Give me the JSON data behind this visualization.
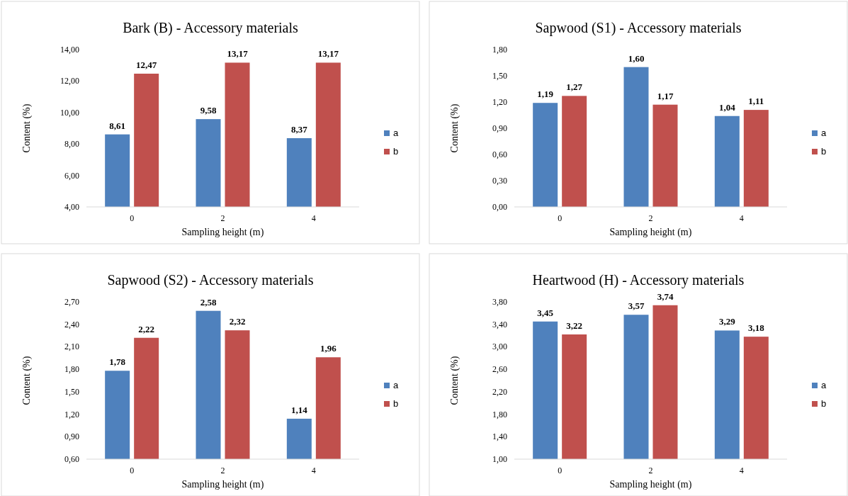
{
  "chart_data": [
    {
      "type": "bar",
      "title": "Bark (B) - Accessory materials",
      "xlabel": "Sampling height (m)",
      "ylabel": "Content (%)",
      "categories": [
        "0",
        "2",
        "4"
      ],
      "legend": "right",
      "ylim": [
        4,
        14
      ],
      "yticks": [
        {
          "value": 4,
          "label": "4,00"
        },
        {
          "value": 6,
          "label": "6,00"
        },
        {
          "value": 8,
          "label": "8,00"
        },
        {
          "value": 10,
          "label": "10,00"
        },
        {
          "value": 12,
          "label": "12,00"
        },
        {
          "value": 14,
          "label": "14,00"
        }
      ],
      "series": [
        {
          "name": "a",
          "color": "#4f81bd",
          "values": [
            8.61,
            9.58,
            8.37
          ],
          "value_labels": [
            "8,61",
            "9,58",
            "8,37"
          ]
        },
        {
          "name": "b",
          "color": "#c0504d",
          "values": [
            12.47,
            13.17,
            13.17
          ],
          "value_labels": [
            "12,47",
            "13,17",
            "13,17"
          ]
        }
      ]
    },
    {
      "type": "bar",
      "title": "Sapwood (S1) - Accessory materials",
      "xlabel": "Sampling height (m)",
      "ylabel": "Content (%)",
      "categories": [
        "0",
        "2",
        "4"
      ],
      "legend": "right",
      "ylim": [
        0,
        1.8
      ],
      "yticks": [
        {
          "value": 0,
          "label": "0,00"
        },
        {
          "value": 0.3,
          "label": "0,30"
        },
        {
          "value": 0.6,
          "label": "0,60"
        },
        {
          "value": 0.9,
          "label": "0,90"
        },
        {
          "value": 1.2,
          "label": "1,20"
        },
        {
          "value": 1.5,
          "label": "1,50"
        },
        {
          "value": 1.8,
          "label": "1,80"
        }
      ],
      "series": [
        {
          "name": "a",
          "color": "#4f81bd",
          "values": [
            1.19,
            1.6,
            1.04
          ],
          "value_labels": [
            "1,19",
            "1,60",
            "1,04"
          ]
        },
        {
          "name": "b",
          "color": "#c0504d",
          "values": [
            1.27,
            1.17,
            1.11
          ],
          "value_labels": [
            "1,27",
            "1,17",
            "1,11"
          ]
        }
      ]
    },
    {
      "type": "bar",
      "title": "Sapwood (S2) - Accessory materials",
      "xlabel": "Sampling height (m)",
      "ylabel": "Content (%)",
      "categories": [
        "0",
        "2",
        "4"
      ],
      "legend": "right",
      "ylim": [
        0.6,
        2.7
      ],
      "yticks": [
        {
          "value": 0.6,
          "label": "0,60"
        },
        {
          "value": 0.9,
          "label": "0,90"
        },
        {
          "value": 1.2,
          "label": "1,20"
        },
        {
          "value": 1.5,
          "label": "1,50"
        },
        {
          "value": 1.8,
          "label": "1,80"
        },
        {
          "value": 2.1,
          "label": "2,10"
        },
        {
          "value": 2.4,
          "label": "2,40"
        },
        {
          "value": 2.7,
          "label": "2,70"
        }
      ],
      "series": [
        {
          "name": "a",
          "color": "#4f81bd",
          "values": [
            1.78,
            2.58,
            1.14
          ],
          "value_labels": [
            "1,78",
            "2,58",
            "1,14"
          ]
        },
        {
          "name": "b",
          "color": "#c0504d",
          "values": [
            2.22,
            2.32,
            1.96
          ],
          "value_labels": [
            "2,22",
            "2,32",
            "1,96"
          ]
        }
      ]
    },
    {
      "type": "bar",
      "title": "Heartwood (H) - Accessory materials",
      "xlabel": "Sampling height (m)",
      "ylabel": "Content (%)",
      "categories": [
        "0",
        "2",
        "4"
      ],
      "legend": "right",
      "ylim": [
        1,
        3.8
      ],
      "yticks": [
        {
          "value": 1,
          "label": "1,00"
        },
        {
          "value": 1.4,
          "label": "1,40"
        },
        {
          "value": 1.8,
          "label": "1,80"
        },
        {
          "value": 2.2,
          "label": "2,20"
        },
        {
          "value": 2.6,
          "label": "2,60"
        },
        {
          "value": 3,
          "label": "3,00"
        },
        {
          "value": 3.4,
          "label": "3,40"
        },
        {
          "value": 3.8,
          "label": "3,80"
        }
      ],
      "series": [
        {
          "name": "a",
          "color": "#4f81bd",
          "values": [
            3.45,
            3.57,
            3.29
          ],
          "value_labels": [
            "3,45",
            "3,57",
            "3,29"
          ]
        },
        {
          "name": "b",
          "color": "#c0504d",
          "values": [
            3.22,
            3.74,
            3.18
          ],
          "value_labels": [
            "3,22",
            "3,74",
            "3,18"
          ]
        }
      ]
    }
  ]
}
